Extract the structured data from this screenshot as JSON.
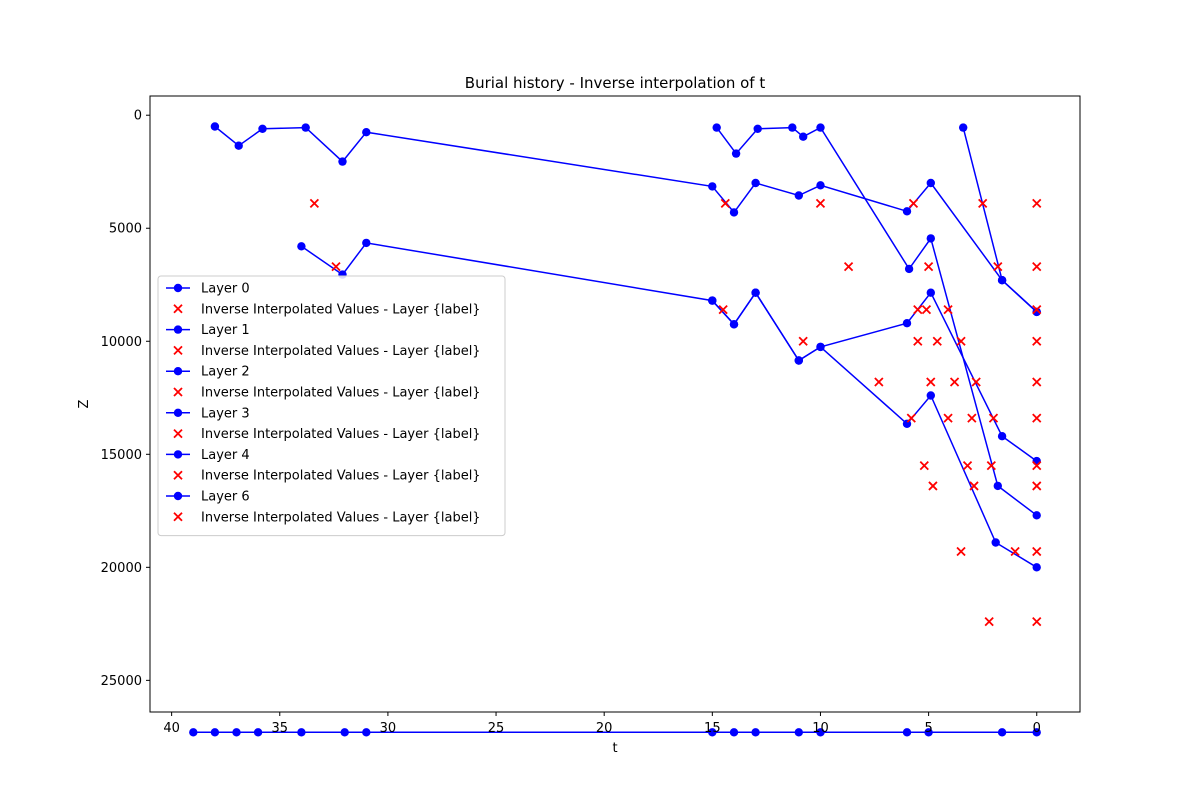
{
  "chart_data": {
    "type": "line",
    "title": "Burial history - Inverse interpolation of t",
    "xlabel": "t",
    "ylabel": "Z",
    "xlim": [
      41,
      -2
    ],
    "ylim": [
      26400,
      -850
    ],
    "x_inverted": true,
    "y_inverted": true,
    "xticks": [
      40,
      35,
      30,
      25,
      20,
      15,
      10,
      5,
      0
    ],
    "yticks": [
      0,
      5000,
      10000,
      15000,
      20000,
      25000
    ],
    "grid": false,
    "legend_position": "center-left",
    "line_color": "#0000ff",
    "marker_color": "#ff0000",
    "series": [
      {
        "name": "Layer 0",
        "points": [
          [
            38,
            500
          ],
          [
            36.9,
            1350
          ],
          [
            35.8,
            600
          ],
          [
            33.8,
            550
          ],
          [
            32.1,
            2050
          ],
          [
            31,
            750
          ],
          [
            15,
            3150
          ],
          [
            14,
            4300
          ],
          [
            13,
            3000
          ],
          [
            11,
            3550
          ],
          [
            10,
            3100
          ],
          [
            6,
            4250
          ],
          [
            4.9,
            3000
          ],
          [
            1.6,
            7300
          ],
          [
            0,
            8700
          ]
        ]
      },
      {
        "name": "Layer 1",
        "points": [
          [
            14.8,
            550
          ],
          [
            13.9,
            1700
          ],
          [
            12.9,
            600
          ],
          [
            11.3,
            550
          ],
          [
            10.8,
            950
          ],
          [
            10,
            550
          ],
          [
            5.9,
            6800
          ],
          [
            4.9,
            5450
          ],
          [
            1.8,
            16400
          ],
          [
            0,
            17700
          ]
        ]
      },
      {
        "name": "Layer 2",
        "points": [
          [
            3.4,
            550
          ],
          [
            1.6,
            7300
          ],
          [
            0,
            8700
          ]
        ]
      },
      {
        "name": "Layer 3",
        "points": [
          [
            34,
            5800
          ],
          [
            32.1,
            7050
          ],
          [
            31,
            5650
          ],
          [
            15,
            8200
          ],
          [
            14,
            9250
          ],
          [
            13,
            7850
          ],
          [
            11,
            10850
          ],
          [
            10,
            10250
          ],
          [
            6,
            9200
          ],
          [
            4.9,
            7850
          ],
          [
            1.6,
            14200
          ],
          [
            0,
            15300
          ]
        ]
      },
      {
        "name": "Layer 4",
        "points": [
          [
            15,
            8200
          ],
          [
            14,
            9250
          ],
          [
            13,
            7850
          ],
          [
            11,
            10850
          ],
          [
            10,
            10250
          ],
          [
            6,
            13650
          ],
          [
            4.9,
            12400
          ],
          [
            1.9,
            18900
          ],
          [
            0,
            20000
          ]
        ]
      },
      {
        "name": "Layer 6",
        "points": [
          [
            39,
            27300
          ],
          [
            38,
            27300
          ],
          [
            37,
            27300
          ],
          [
            36,
            27300
          ],
          [
            34,
            27300
          ],
          [
            32,
            27300
          ],
          [
            31,
            27300
          ],
          [
            15,
            27300
          ],
          [
            14,
            27300
          ],
          [
            13,
            27300
          ],
          [
            11,
            27300
          ],
          [
            10,
            27300
          ],
          [
            6,
            27300
          ],
          [
            5,
            27300
          ],
          [
            1.6,
            27300
          ],
          [
            0,
            27300
          ]
        ]
      }
    ],
    "inverse_points": [
      {
        "name": "Inverse Interpolated Values - Layer {label}",
        "points": [
          [
            33.4,
            3900
          ],
          [
            14.4,
            3900
          ],
          [
            10,
            3900
          ],
          [
            5.7,
            3900
          ],
          [
            2.5,
            3900
          ],
          [
            0,
            3900
          ]
        ]
      },
      {
        "name": "Inverse Interpolated Values - Layer {label}",
        "points": [
          [
            32.4,
            6700
          ],
          [
            8.7,
            6700
          ],
          [
            5,
            6700
          ],
          [
            1.8,
            6700
          ],
          [
            0,
            6700
          ]
        ]
      },
      {
        "name": "Inverse Interpolated Values - Layer {label}",
        "points": [
          [
            14.5,
            8600
          ],
          [
            5.5,
            8600
          ],
          [
            5.1,
            8600
          ],
          [
            4.1,
            8600
          ],
          [
            0,
            8600
          ]
        ]
      },
      {
        "name": "Inverse Interpolated Values - Layer {label}",
        "points": [
          [
            10.8,
            10000
          ],
          [
            5.5,
            10000
          ],
          [
            4.6,
            10000
          ],
          [
            3.5,
            10000
          ],
          [
            0,
            10000
          ]
        ]
      },
      {
        "name": "Inverse Interpolated Values - Layer {label}",
        "points": [
          [
            7.3,
            11800
          ],
          [
            4.9,
            11800
          ],
          [
            3.8,
            11800
          ],
          [
            2.8,
            11800
          ],
          [
            0,
            11800
          ]
        ]
      },
      {
        "name": "Inverse Interpolated Values - Layer {label}",
        "points": [
          [
            5.8,
            13400
          ],
          [
            4.1,
            13400
          ],
          [
            3,
            13400
          ],
          [
            2,
            13400
          ],
          [
            0,
            13400
          ]
        ]
      },
      {
        "name": "Inverse Interpolated Values - Layer {label}",
        "points": [
          [
            5.2,
            15500
          ],
          [
            3.2,
            15500
          ],
          [
            2.1,
            15500
          ],
          [
            0,
            15500
          ]
        ]
      },
      {
        "name": "Inverse Interpolated Values - Layer {label}",
        "points": [
          [
            4.8,
            16400
          ],
          [
            2.9,
            16400
          ],
          [
            0,
            16400
          ]
        ]
      },
      {
        "name": "Inverse Interpolated Values - Layer {label}",
        "points": [
          [
            3.5,
            19300
          ],
          [
            1,
            19300
          ],
          [
            0,
            19300
          ]
        ]
      },
      {
        "name": "Inverse Interpolated Values - Layer {label}",
        "points": [
          [
            2.2,
            22400
          ],
          [
            0,
            22400
          ]
        ]
      }
    ],
    "legend": [
      {
        "kind": "line",
        "label": "Layer 0"
      },
      {
        "kind": "marker",
        "label": "Inverse Interpolated Values - Layer {label}"
      },
      {
        "kind": "line",
        "label": "Layer 1"
      },
      {
        "kind": "marker",
        "label": "Inverse Interpolated Values - Layer {label}"
      },
      {
        "kind": "line",
        "label": "Layer 2"
      },
      {
        "kind": "marker",
        "label": "Inverse Interpolated Values - Layer {label}"
      },
      {
        "kind": "line",
        "label": "Layer 3"
      },
      {
        "kind": "marker",
        "label": "Inverse Interpolated Values - Layer {label}"
      },
      {
        "kind": "line",
        "label": "Layer 4"
      },
      {
        "kind": "marker",
        "label": "Inverse Interpolated Values - Layer {label}"
      },
      {
        "kind": "line",
        "label": "Layer 6"
      },
      {
        "kind": "marker",
        "label": "Inverse Interpolated Values - Layer {label}"
      }
    ]
  }
}
